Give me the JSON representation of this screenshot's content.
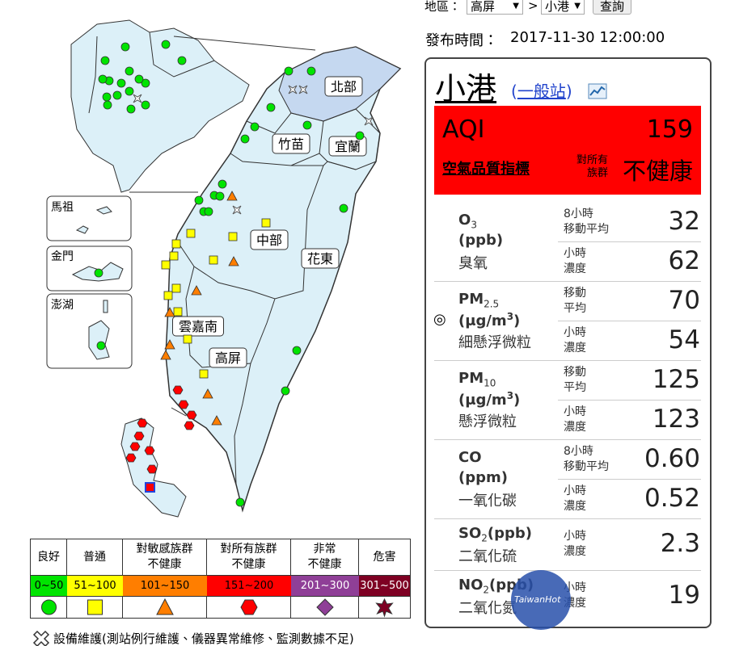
{
  "selector": {
    "region_label": "地區：",
    "region": "高屏",
    "separator": ">",
    "station": "小港",
    "button": "查詢"
  },
  "publish": {
    "label": "發布時間：",
    "time": "2017-11-30 12:00:00"
  },
  "station": {
    "name": "小港",
    "type_open": "(",
    "type": "一般站",
    "type_close": ")"
  },
  "aqi": {
    "label": "AQI",
    "value": 159,
    "caption": "空氣品質指標",
    "group": [
      "對所有",
      "族群"
    ],
    "status": "不健康",
    "color": "#ff0000"
  },
  "pollutants": [
    {
      "name": "O",
      "sub": "3",
      "unit": "(ppb)",
      "label": "臭氧",
      "rows": [
        {
          "period": [
            "8小時",
            "移動平均"
          ],
          "value": 32
        },
        {
          "period": [
            "小時",
            "濃度"
          ],
          "value": 62
        }
      ]
    },
    {
      "marker": "◎",
      "name": "PM",
      "sub": "2.5",
      "unit": "(μg/m",
      "unit_sup": "3",
      "unit_end": ")",
      "label": "細懸浮微粒",
      "rows": [
        {
          "period": [
            "移動",
            "平均"
          ],
          "value": 70
        },
        {
          "period": [
            "小時",
            "濃度"
          ],
          "value": 54
        }
      ]
    },
    {
      "name": "PM",
      "sub": "10",
      "unit": "(μg/m",
      "unit_sup": "3",
      "unit_end": ")",
      "label": "懸浮微粒",
      "rows": [
        {
          "period": [
            "移動",
            "平均"
          ],
          "value": 125
        },
        {
          "period": [
            "小時",
            "濃度"
          ],
          "value": 123
        }
      ]
    },
    {
      "name": "CO",
      "unit": "(ppm)",
      "label": "一氧化碳",
      "rows": [
        {
          "period": [
            "8小時",
            "移動平均"
          ],
          "value": "0.60"
        },
        {
          "period": [
            "小時",
            "濃度"
          ],
          "value": "0.52"
        }
      ]
    },
    {
      "name": "SO",
      "sub": "2",
      "inline_unit": "(ppb)",
      "label": "二氧化硫",
      "rows": [
        {
          "period": [
            "小時",
            "濃度"
          ],
          "value": 2.3
        }
      ]
    },
    {
      "name": "NO",
      "sub": "2",
      "inline_unit": "(ppb)",
      "label": "二氧化氮",
      "rows": [
        {
          "period": [
            "小時",
            "濃度"
          ],
          "value": 19
        }
      ]
    }
  ],
  "map": {
    "regions": [
      "北部",
      "竹苗",
      "宜蘭",
      "中部",
      "花東",
      "雲嘉南",
      "高屏"
    ],
    "islands": [
      "馬祖",
      "金門",
      "澎湖"
    ]
  },
  "legend": {
    "headers": [
      [
        "良好"
      ],
      [
        "普通"
      ],
      [
        "對敏感族群",
        "不健康"
      ],
      [
        "對所有族群",
        "不健康"
      ],
      [
        "非常",
        "不健康"
      ],
      [
        "危害"
      ]
    ],
    "ranges": [
      "0~50",
      "51~100",
      "101~150",
      "151~200",
      "201~300",
      "301~500"
    ],
    "colors": [
      "#00e400",
      "#ffff00",
      "#ff7e00",
      "#ff0000",
      "#8f3f97",
      "#7e0023"
    ]
  },
  "maintenance_note": "設備維護(測站例行維護、儀器異常維修、監測數據不足)",
  "watermark": "TaiwanHot"
}
